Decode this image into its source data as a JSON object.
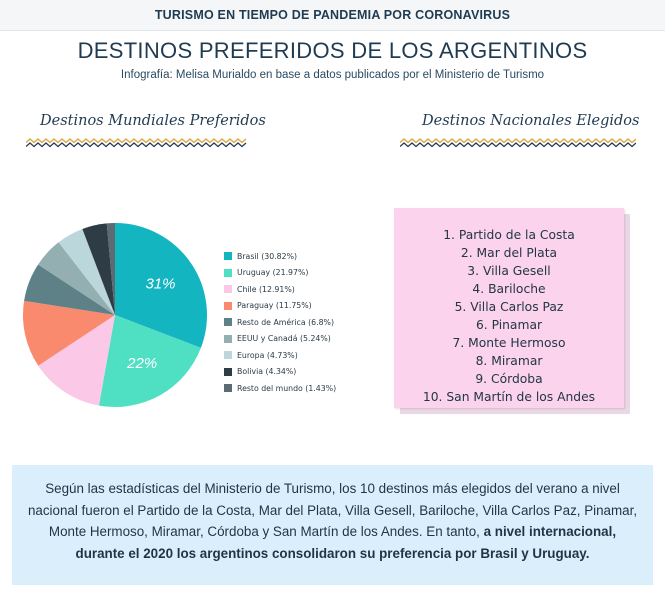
{
  "header": {
    "kicker": "TURISMO EN TIEMPO DE PANDEMIA POR CORONAVIRUS"
  },
  "title": "DESTINOS PREFERIDOS DE LOS ARGENTINOS",
  "subtitle": "Infografía: Melisa Murialdo en base a datos publicados por el Ministerio de Turismo",
  "world_section": {
    "title": "Destinos Mundiales Preferidos"
  },
  "national_section": {
    "title": "Destinos Nacionales Elegidos",
    "items": [
      "1. Partido de la Costa",
      "2. Mar del Plata",
      "3. Villa Gesell",
      "4. Bariloche",
      "5. Villa Carlos Paz",
      "6. Pinamar",
      "7. Monte Hermoso",
      "8. Miramar",
      "9. Córdoba",
      "10. San Martín de los Andes"
    ]
  },
  "summary": {
    "text": "Según las estadísticas del Ministerio de Turismo, los 10 destinos más elegidos del verano a nivel nacional fueron el Partido de la Costa, Mar del Plata, Villa Gesell, Bariloche, Villa Carlos Paz, Pinamar, Monte Hermoso, Miramar, Córdoba y San Martín de los Andes. En tanto, ",
    "bold": "a nivel internacional, durante el 2020 los argentinos consolidaron su preferencia por Brasil y Uruguay."
  },
  "colors": {
    "zigzag_gold": "#d9a637",
    "zigzag_navy": "#2a3f55",
    "note_pink": "#fbd3ec",
    "summary_blue": "#dbeefb"
  },
  "chart_data": {
    "type": "pie",
    "slices": [
      {
        "name": "Brasil",
        "legend": "Brasil (30.82%)",
        "value": 30.82,
        "color": "#12b5c0",
        "label": "31%"
      },
      {
        "name": "Uruguay",
        "legend": "Uruguay (21.97%)",
        "value": 21.97,
        "color": "#4fe0c4",
        "label": "22%"
      },
      {
        "name": "Chile",
        "legend": "Chile (12.91%)",
        "value": 12.91,
        "color": "#fbc8e8",
        "label": ""
      },
      {
        "name": "Paraguay",
        "legend": "Paraguay (11.75%)",
        "value": 11.75,
        "color": "#f98a6d",
        "label": ""
      },
      {
        "name": "Resto de América",
        "legend": "Resto de América (6.8%)",
        "value": 6.8,
        "color": "#5e8187",
        "label": ""
      },
      {
        "name": "EEUU y Canadá",
        "legend": "EEUU y Canadá (5.24%)",
        "value": 5.24,
        "color": "#94afb2",
        "label": ""
      },
      {
        "name": "Europa",
        "legend": "Europa (4.73%)",
        "value": 4.73,
        "color": "#bcd7dc",
        "label": ""
      },
      {
        "name": "Bolivia",
        "legend": "Bolivia (4.34%)",
        "value": 4.34,
        "color": "#2e3c45",
        "label": ""
      },
      {
        "name": "Resto del mundo",
        "legend": "Resto del mundo (1.43%)",
        "value": 1.43,
        "color": "#5c6a72",
        "label": ""
      }
    ],
    "start": "top",
    "direction": "clockwise",
    "legend_position": "right"
  }
}
